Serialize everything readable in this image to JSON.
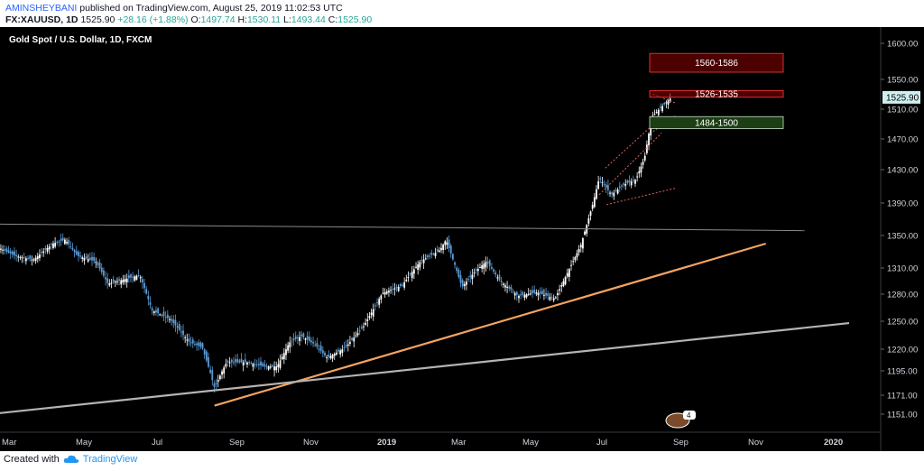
{
  "header": {
    "author": "AMINSHEYBANI",
    "published": " published on TradingView.com, August 25, 2019 11:02:53 UTC",
    "symbol": "FX:XAUUSD, 1D",
    "last": "1525.90",
    "change": "+28.16 (+1.88%)",
    "o_label": "O:",
    "o_value": "1497.74",
    "h_label": "H:",
    "h_value": "1530.11",
    "l_label": "L:",
    "l_value": "1493.44",
    "c_label": "C:",
    "c_value": "1525.90"
  },
  "footer": {
    "created_with": "Created with",
    "brand": "TradingView"
  },
  "chart_data": {
    "type": "candlestick",
    "title": "Gold Spot / U.S. Dollar, 1D, FXCM",
    "last_price_label": "1525.90",
    "event_badge": "4",
    "y_ticks": [
      1151.0,
      1171.0,
      1195.0,
      1220.0,
      1250.0,
      1280.0,
      1310.0,
      1350.0,
      1390.0,
      1430.0,
      1470.0,
      1510.0,
      1550.0,
      1600.0
    ],
    "y_tick_labels": [
      "1151.00",
      "1171.00",
      "1195.00",
      "1220.00",
      "1250.00",
      "1280.00",
      "1310.00",
      "1350.00",
      "1390.00",
      "1430.00",
      "1470.00",
      "1510.00",
      "1550.00",
      "1600.00"
    ],
    "x_ticks": [
      "Mar",
      "May",
      "Jul",
      "Sep",
      "Nov",
      "2019",
      "Mar",
      "May",
      "Jul",
      "Sep",
      "Nov",
      "2020"
    ],
    "colors": {
      "background": "#000000",
      "up": "#ffffff",
      "down": "#5b9bd5",
      "orange_trend": "#f4a460",
      "grey_trend": "#b4b4b4",
      "resistance_zone": "#8b0000",
      "support_zone": "#1d3d14"
    },
    "zones": [
      {
        "label": "1560-1586",
        "low": 1560,
        "high": 1586,
        "type": "resistance"
      },
      {
        "label": "1526-1535",
        "low": 1526,
        "high": 1535,
        "type": "resistance"
      },
      {
        "label": "1484-1500",
        "low": 1484,
        "high": 1500,
        "type": "support"
      }
    ],
    "trendlines": [
      {
        "name": "",
        "color": "orange",
        "start": {
          "date": "2018-08-15",
          "price": 1160
        },
        "end": {
          "date": "2019-11-08",
          "price": 1340
        }
      },
      {
        "name": "",
        "color": "grey",
        "start": {
          "date": "2018-02-20",
          "price": 1152
        },
        "end": {
          "date": "2020-01-15",
          "price": 1248
        }
      },
      {
        "name": "",
        "color": "grey-thin",
        "start": {
          "date": "2018-02-20",
          "price": 1364
        },
        "end": {
          "date": "2019-12-10",
          "price": 1356
        }
      }
    ],
    "path": [
      [
        "2018-02-20",
        1335
      ],
      [
        "2018-03-05",
        1325
      ],
      [
        "2018-03-20",
        1320
      ],
      [
        "2018-04-05",
        1340
      ],
      [
        "2018-04-15",
        1345
      ],
      [
        "2018-04-25",
        1325
      ],
      [
        "2018-05-10",
        1318
      ],
      [
        "2018-05-20",
        1292
      ],
      [
        "2018-06-05",
        1298
      ],
      [
        "2018-06-15",
        1302
      ],
      [
        "2018-06-25",
        1262
      ],
      [
        "2018-07-10",
        1252
      ],
      [
        "2018-07-25",
        1228
      ],
      [
        "2018-08-05",
        1222
      ],
      [
        "2018-08-15",
        1178
      ],
      [
        "2018-08-25",
        1205
      ],
      [
        "2018-09-10",
        1205
      ],
      [
        "2018-09-25",
        1200
      ],
      [
        "2018-10-05",
        1200
      ],
      [
        "2018-10-15",
        1227
      ],
      [
        "2018-10-25",
        1234
      ],
      [
        "2018-11-05",
        1225
      ],
      [
        "2018-11-15",
        1210
      ],
      [
        "2018-11-30",
        1222
      ],
      [
        "2018-12-15",
        1245
      ],
      [
        "2018-12-30",
        1281
      ],
      [
        "2019-01-15",
        1290
      ],
      [
        "2019-01-30",
        1318
      ],
      [
        "2019-02-15",
        1332
      ],
      [
        "2019-02-20",
        1345
      ],
      [
        "2019-03-05",
        1288
      ],
      [
        "2019-03-15",
        1305
      ],
      [
        "2019-03-25",
        1318
      ],
      [
        "2019-04-05",
        1295
      ],
      [
        "2019-04-20",
        1278
      ],
      [
        "2019-05-05",
        1282
      ],
      [
        "2019-05-20",
        1275
      ],
      [
        "2019-06-01",
        1310
      ],
      [
        "2019-06-10",
        1338
      ],
      [
        "2019-06-20",
        1390
      ],
      [
        "2019-06-25",
        1420
      ],
      [
        "2019-07-05",
        1400
      ],
      [
        "2019-07-15",
        1412
      ],
      [
        "2019-07-25",
        1418
      ],
      [
        "2019-08-01",
        1445
      ],
      [
        "2019-08-07",
        1500
      ],
      [
        "2019-08-13",
        1510
      ],
      [
        "2019-08-23",
        1526
      ]
    ]
  }
}
